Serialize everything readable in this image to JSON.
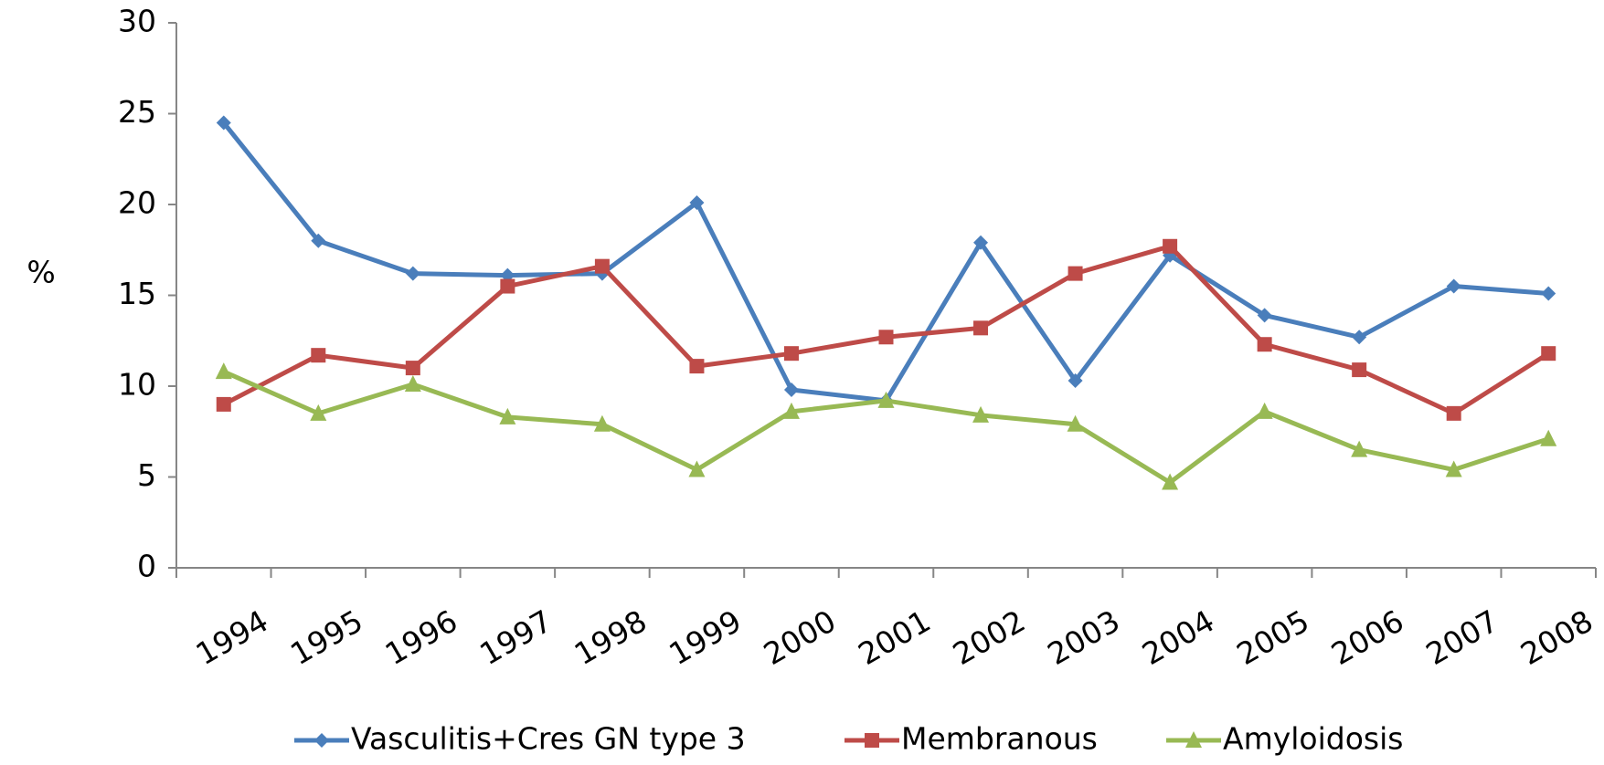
{
  "chart_data": {
    "type": "line",
    "ylabel": "%",
    "categories": [
      "1994",
      "1995",
      "1996",
      "1997",
      "1998",
      "1999",
      "2000",
      "2001",
      "2002",
      "2003",
      "2004",
      "2005",
      "2006",
      "2007",
      "2008"
    ],
    "series": [
      {
        "name": "Vasculitis+Cres GN type 3",
        "color": "#4a7ebb",
        "marker": "diamond",
        "values": [
          24.5,
          18,
          16.2,
          16.1,
          16.2,
          20.1,
          9.8,
          9.2,
          17.9,
          10.3,
          17.2,
          13.9,
          12.7,
          15.5,
          15.1
        ]
      },
      {
        "name": "Membranous",
        "color": "#be4b48",
        "marker": "square",
        "values": [
          9,
          11.7,
          11,
          15.5,
          16.6,
          11.1,
          11.8,
          12.7,
          13.2,
          16.2,
          17.7,
          12.3,
          10.9,
          8.5,
          11.8
        ]
      },
      {
        "name": "Amyloidosis",
        "color": "#98b954",
        "marker": "triangle",
        "values": [
          10.8,
          8.5,
          10.1,
          8.3,
          7.9,
          5.4,
          8.6,
          9.2,
          8.4,
          7.9,
          4.7,
          8.6,
          6.5,
          5.4,
          7.1
        ]
      }
    ],
    "ylim": [
      0,
      30
    ],
    "yticks": [
      0,
      5,
      10,
      15,
      20,
      25,
      30
    ],
    "grid": false,
    "legend": "bottom"
  }
}
